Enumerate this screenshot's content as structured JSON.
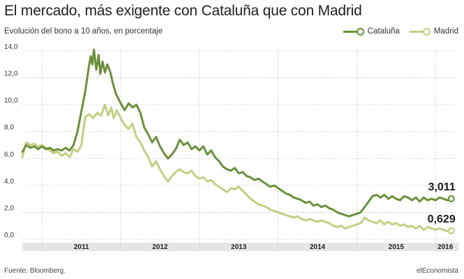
{
  "header": {
    "title": "El mercado, más exigente con Cataluña que con Madrid",
    "subtitle": "Evolución del bono a 10 años, en porcentaje"
  },
  "footer": {
    "source": "Fuente: Bloomberg.",
    "brand": "elEconomista"
  },
  "colors": {
    "cataluna": "#6b8f3a",
    "madrid": "#c2cf82",
    "grid": "#bdbdbd",
    "axis_band": "#e6e6e6"
  },
  "chart_data": {
    "type": "line",
    "title": "El mercado, más exigente con Cataluña que con Madrid",
    "subtitle": "Evolución del bono a 10 años, en porcentaje",
    "legend_position": "top-right",
    "grid": true,
    "ylim": [
      0,
      14
    ],
    "y_ticks": [
      "0,0",
      "2,0",
      "4,0",
      "6,0",
      "8,0",
      "10,0",
      "12,0",
      "14,0"
    ],
    "xlim": [
      2010.75,
      2016.3
    ],
    "x_ticks": [
      {
        "label": "2011",
        "x": 2011
      },
      {
        "label": "2012",
        "x": 2012
      },
      {
        "label": "2013",
        "x": 2013
      },
      {
        "label": "2014",
        "x": 2014
      },
      {
        "label": "2015",
        "x": 2015
      },
      {
        "label": "2016",
        "x": 2016
      }
    ],
    "series": [
      {
        "name": "Cataluña",
        "color": "#6b8f3a",
        "end_label": "3,011",
        "points": [
          [
            2010.75,
            6.5
          ],
          [
            2010.8,
            7.0
          ],
          [
            2010.85,
            6.8
          ],
          [
            2010.9,
            6.9
          ],
          [
            2010.95,
            6.7
          ],
          [
            2011.0,
            6.9
          ],
          [
            2011.05,
            6.7
          ],
          [
            2011.1,
            6.8
          ],
          [
            2011.15,
            6.6
          ],
          [
            2011.2,
            6.7
          ],
          [
            2011.25,
            6.6
          ],
          [
            2011.3,
            6.8
          ],
          [
            2011.35,
            6.6
          ],
          [
            2011.4,
            7.0
          ],
          [
            2011.45,
            8.0
          ],
          [
            2011.5,
            9.5
          ],
          [
            2011.55,
            11.0
          ],
          [
            2011.58,
            12.2
          ],
          [
            2011.6,
            13.0
          ],
          [
            2011.62,
            13.6
          ],
          [
            2011.64,
            13.0
          ],
          [
            2011.66,
            14.1
          ],
          [
            2011.69,
            12.6
          ],
          [
            2011.72,
            13.7
          ],
          [
            2011.74,
            12.3
          ],
          [
            2011.77,
            13.2
          ],
          [
            2011.8,
            12.4
          ],
          [
            2011.83,
            13.0
          ],
          [
            2011.87,
            12.4
          ],
          [
            2011.9,
            11.6
          ],
          [
            2011.94,
            10.8
          ],
          [
            2012.0,
            10.1
          ],
          [
            2012.05,
            9.6
          ],
          [
            2012.1,
            10.1
          ],
          [
            2012.15,
            9.8
          ],
          [
            2012.2,
            10.0
          ],
          [
            2012.25,
            9.4
          ],
          [
            2012.3,
            8.3
          ],
          [
            2012.35,
            7.8
          ],
          [
            2012.4,
            7.2
          ],
          [
            2012.45,
            7.6
          ],
          [
            2012.5,
            6.9
          ],
          [
            2012.55,
            6.4
          ],
          [
            2012.6,
            6.0
          ],
          [
            2012.65,
            6.3
          ],
          [
            2012.7,
            6.7
          ],
          [
            2012.75,
            7.4
          ],
          [
            2012.8,
            7.0
          ],
          [
            2012.85,
            7.2
          ],
          [
            2012.9,
            6.7
          ],
          [
            2012.95,
            6.9
          ],
          [
            2013.0,
            6.6
          ],
          [
            2013.05,
            6.9
          ],
          [
            2013.1,
            6.3
          ],
          [
            2013.15,
            6.6
          ],
          [
            2013.2,
            6.1
          ],
          [
            2013.25,
            5.8
          ],
          [
            2013.3,
            5.4
          ],
          [
            2013.35,
            5.2
          ],
          [
            2013.4,
            5.1
          ],
          [
            2013.45,
            5.3
          ],
          [
            2013.5,
            4.9
          ],
          [
            2013.55,
            5.0
          ],
          [
            2013.6,
            4.7
          ],
          [
            2013.65,
            4.6
          ],
          [
            2013.7,
            4.4
          ],
          [
            2013.75,
            4.5
          ],
          [
            2013.8,
            4.3
          ],
          [
            2013.85,
            4.1
          ],
          [
            2013.9,
            3.9
          ],
          [
            2013.95,
            4.0
          ],
          [
            2014.0,
            3.8
          ],
          [
            2014.05,
            3.6
          ],
          [
            2014.1,
            3.4
          ],
          [
            2014.15,
            3.3
          ],
          [
            2014.2,
            3.1
          ],
          [
            2014.25,
            3.0
          ],
          [
            2014.3,
            2.9
          ],
          [
            2014.35,
            2.7
          ],
          [
            2014.4,
            2.8
          ],
          [
            2014.45,
            2.5
          ],
          [
            2014.5,
            2.6
          ],
          [
            2014.55,
            2.4
          ],
          [
            2014.6,
            2.5
          ],
          [
            2014.65,
            2.3
          ],
          [
            2014.7,
            2.2
          ],
          [
            2014.75,
            2.0
          ],
          [
            2014.8,
            1.9
          ],
          [
            2014.85,
            1.8
          ],
          [
            2014.9,
            1.7
          ],
          [
            2014.95,
            1.8
          ],
          [
            2015.0,
            1.9
          ],
          [
            2015.05,
            2.0
          ],
          [
            2015.1,
            2.4
          ],
          [
            2015.15,
            2.8
          ],
          [
            2015.2,
            3.2
          ],
          [
            2015.25,
            3.3
          ],
          [
            2015.3,
            3.1
          ],
          [
            2015.35,
            3.3
          ],
          [
            2015.4,
            3.0
          ],
          [
            2015.45,
            3.2
          ],
          [
            2015.5,
            3.0
          ],
          [
            2015.55,
            2.9
          ],
          [
            2015.6,
            3.2
          ],
          [
            2015.65,
            3.1
          ],
          [
            2015.7,
            2.9
          ],
          [
            2015.75,
            3.1
          ],
          [
            2015.8,
            2.8
          ],
          [
            2015.85,
            3.1
          ],
          [
            2015.9,
            2.9
          ],
          [
            2015.95,
            3.0
          ],
          [
            2016.0,
            2.9
          ],
          [
            2016.05,
            3.1
          ],
          [
            2016.1,
            3.0
          ],
          [
            2016.15,
            2.9
          ],
          [
            2016.2,
            3.011
          ]
        ]
      },
      {
        "name": "Madrid",
        "color": "#c2cf82",
        "end_label": "0,629",
        "points": [
          [
            2010.75,
            6.1
          ],
          [
            2010.8,
            7.2
          ],
          [
            2010.85,
            7.0
          ],
          [
            2010.9,
            7.1
          ],
          [
            2010.95,
            6.9
          ],
          [
            2011.0,
            7.0
          ],
          [
            2011.05,
            6.8
          ],
          [
            2011.1,
            6.6
          ],
          [
            2011.15,
            6.4
          ],
          [
            2011.2,
            6.5
          ],
          [
            2011.25,
            6.2
          ],
          [
            2011.3,
            6.4
          ],
          [
            2011.35,
            6.1
          ],
          [
            2011.4,
            6.7
          ],
          [
            2011.45,
            6.5
          ],
          [
            2011.5,
            7.0
          ],
          [
            2011.55,
            9.1
          ],
          [
            2011.6,
            9.3
          ],
          [
            2011.65,
            9.0
          ],
          [
            2011.7,
            9.4
          ],
          [
            2011.75,
            9.2
          ],
          [
            2011.8,
            10.0
          ],
          [
            2011.84,
            9.2
          ],
          [
            2011.88,
            9.8
          ],
          [
            2011.91,
            9.0
          ],
          [
            2011.95,
            9.6
          ],
          [
            2012.0,
            9.0
          ],
          [
            2012.05,
            8.5
          ],
          [
            2012.1,
            8.2
          ],
          [
            2012.15,
            8.6
          ],
          [
            2012.2,
            7.6
          ],
          [
            2012.25,
            7.2
          ],
          [
            2012.3,
            6.6
          ],
          [
            2012.35,
            6.1
          ],
          [
            2012.4,
            5.4
          ],
          [
            2012.45,
            5.8
          ],
          [
            2012.5,
            5.2
          ],
          [
            2012.55,
            4.7
          ],
          [
            2012.6,
            4.3
          ],
          [
            2012.65,
            4.7
          ],
          [
            2012.7,
            5.0
          ],
          [
            2012.75,
            5.2
          ],
          [
            2012.8,
            5.0
          ],
          [
            2012.85,
            4.9
          ],
          [
            2012.9,
            5.1
          ],
          [
            2012.95,
            4.7
          ],
          [
            2013.0,
            4.5
          ],
          [
            2013.05,
            4.6
          ],
          [
            2013.1,
            4.3
          ],
          [
            2013.15,
            4.4
          ],
          [
            2013.2,
            4.1
          ],
          [
            2013.25,
            3.9
          ],
          [
            2013.3,
            3.7
          ],
          [
            2013.35,
            3.5
          ],
          [
            2013.4,
            3.8
          ],
          [
            2013.45,
            3.7
          ],
          [
            2013.5,
            3.9
          ],
          [
            2013.55,
            3.6
          ],
          [
            2013.6,
            3.3
          ],
          [
            2013.65,
            3.0
          ],
          [
            2013.7,
            2.8
          ],
          [
            2013.75,
            2.6
          ],
          [
            2013.8,
            2.5
          ],
          [
            2013.85,
            2.4
          ],
          [
            2013.9,
            2.2
          ],
          [
            2013.95,
            2.1
          ],
          [
            2014.0,
            2.0
          ],
          [
            2014.05,
            1.9
          ],
          [
            2014.1,
            1.8
          ],
          [
            2014.15,
            1.7
          ],
          [
            2014.2,
            1.6
          ],
          [
            2014.25,
            1.7
          ],
          [
            2014.3,
            1.5
          ],
          [
            2014.35,
            1.4
          ],
          [
            2014.4,
            1.5
          ],
          [
            2014.45,
            1.4
          ],
          [
            2014.5,
            1.3
          ],
          [
            2014.55,
            1.4
          ],
          [
            2014.6,
            1.3
          ],
          [
            2014.65,
            1.2
          ],
          [
            2014.7,
            1.0
          ],
          [
            2014.75,
            0.9
          ],
          [
            2014.8,
            1.0
          ],
          [
            2014.85,
            0.8
          ],
          [
            2014.9,
            0.9
          ],
          [
            2014.95,
            1.0
          ],
          [
            2015.0,
            1.1
          ],
          [
            2015.05,
            1.2
          ],
          [
            2015.1,
            1.6
          ],
          [
            2015.15,
            1.4
          ],
          [
            2015.2,
            1.3
          ],
          [
            2015.25,
            1.2
          ],
          [
            2015.3,
            1.4
          ],
          [
            2015.35,
            1.1
          ],
          [
            2015.4,
            1.3
          ],
          [
            2015.45,
            1.1
          ],
          [
            2015.5,
            1.2
          ],
          [
            2015.55,
            1.0
          ],
          [
            2015.6,
            1.1
          ],
          [
            2015.65,
            0.9
          ],
          [
            2015.7,
            1.0
          ],
          [
            2015.75,
            0.8
          ],
          [
            2015.8,
            1.0
          ],
          [
            2015.85,
            0.7
          ],
          [
            2015.9,
            0.9
          ],
          [
            2015.95,
            0.8
          ],
          [
            2016.0,
            0.7
          ],
          [
            2016.05,
            0.8
          ],
          [
            2016.1,
            0.7
          ],
          [
            2016.15,
            0.6
          ],
          [
            2016.2,
            0.629
          ]
        ]
      }
    ]
  }
}
